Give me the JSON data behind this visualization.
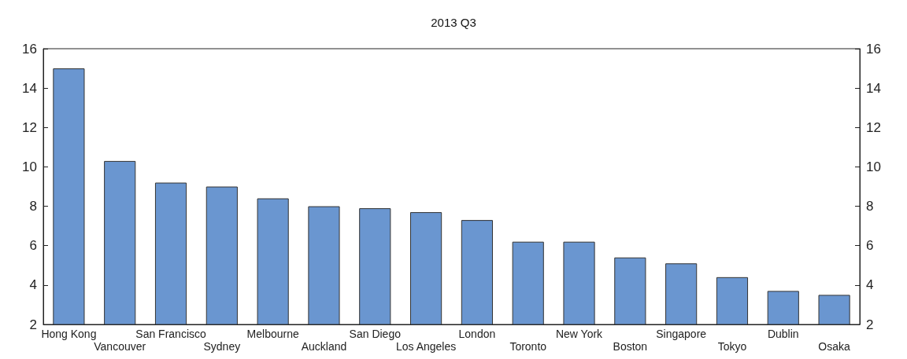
{
  "chart_data": {
    "type": "bar",
    "title": "2013 Q3",
    "categories": [
      "Hong Kong",
      "Vancouver",
      "San Francisco",
      "Sydney",
      "Melbourne",
      "Auckland",
      "San Diego",
      "Los Angeles",
      "London",
      "Toronto",
      "New York",
      "Boston",
      "Singapore",
      "Tokyo",
      "Dublin",
      "Osaka"
    ],
    "values": [
      15.0,
      10.3,
      9.2,
      9.0,
      8.4,
      8.0,
      7.9,
      7.7,
      7.3,
      6.2,
      6.2,
      5.4,
      5.1,
      4.4,
      3.7,
      3.5
    ],
    "color": "#6a96d0",
    "ylim": [
      2,
      16
    ],
    "yticks": [
      2,
      4,
      6,
      8,
      10,
      12,
      14,
      16
    ],
    "y2lim": [
      2,
      16
    ],
    "y2ticks": [
      2,
      4,
      6,
      8,
      10,
      12,
      14,
      16
    ],
    "grid": false
  }
}
